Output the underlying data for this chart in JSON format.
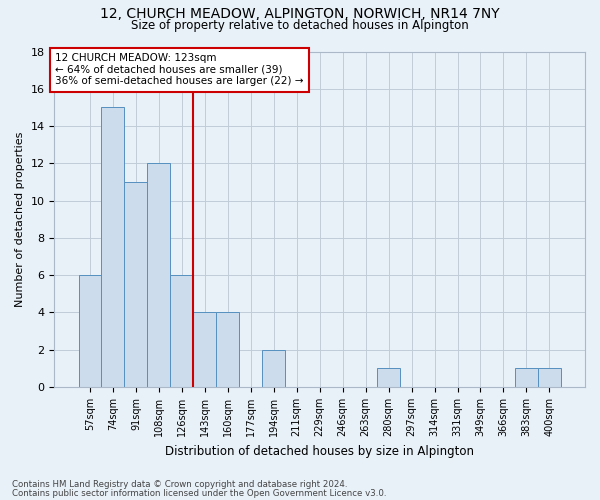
{
  "title1": "12, CHURCH MEADOW, ALPINGTON, NORWICH, NR14 7NY",
  "title2": "Size of property relative to detached houses in Alpington",
  "xlabel": "Distribution of detached houses by size in Alpington",
  "ylabel": "Number of detached properties",
  "footnote1": "Contains HM Land Registry data © Crown copyright and database right 2024.",
  "footnote2": "Contains public sector information licensed under the Open Government Licence v3.0.",
  "annotation_line1": "12 CHURCH MEADOW: 123sqm",
  "annotation_line2": "← 64% of detached houses are smaller (39)",
  "annotation_line3": "36% of semi-detached houses are larger (22) →",
  "bar_labels": [
    "57sqm",
    "74sqm",
    "91sqm",
    "108sqm",
    "126sqm",
    "143sqm",
    "160sqm",
    "177sqm",
    "194sqm",
    "211sqm",
    "229sqm",
    "246sqm",
    "263sqm",
    "280sqm",
    "297sqm",
    "314sqm",
    "331sqm",
    "349sqm",
    "366sqm",
    "383sqm",
    "400sqm"
  ],
  "bar_values": [
    6,
    15,
    11,
    12,
    6,
    4,
    4,
    0,
    2,
    0,
    0,
    0,
    0,
    1,
    0,
    0,
    0,
    0,
    0,
    1,
    1
  ],
  "bar_color": "#ccdcec",
  "bar_edge_color": "#5590c0",
  "vline_color": "#cc0000",
  "annotation_box_color": "#cc0000",
  "grid_color": "#c0ccd8",
  "background_color": "#e8f0f8",
  "ylim": [
    0,
    18
  ],
  "yticks": [
    0,
    2,
    4,
    6,
    8,
    10,
    12,
    14,
    16,
    18
  ],
  "vline_bin_index": 4,
  "figsize": [
    6.0,
    5.0
  ],
  "dpi": 100
}
